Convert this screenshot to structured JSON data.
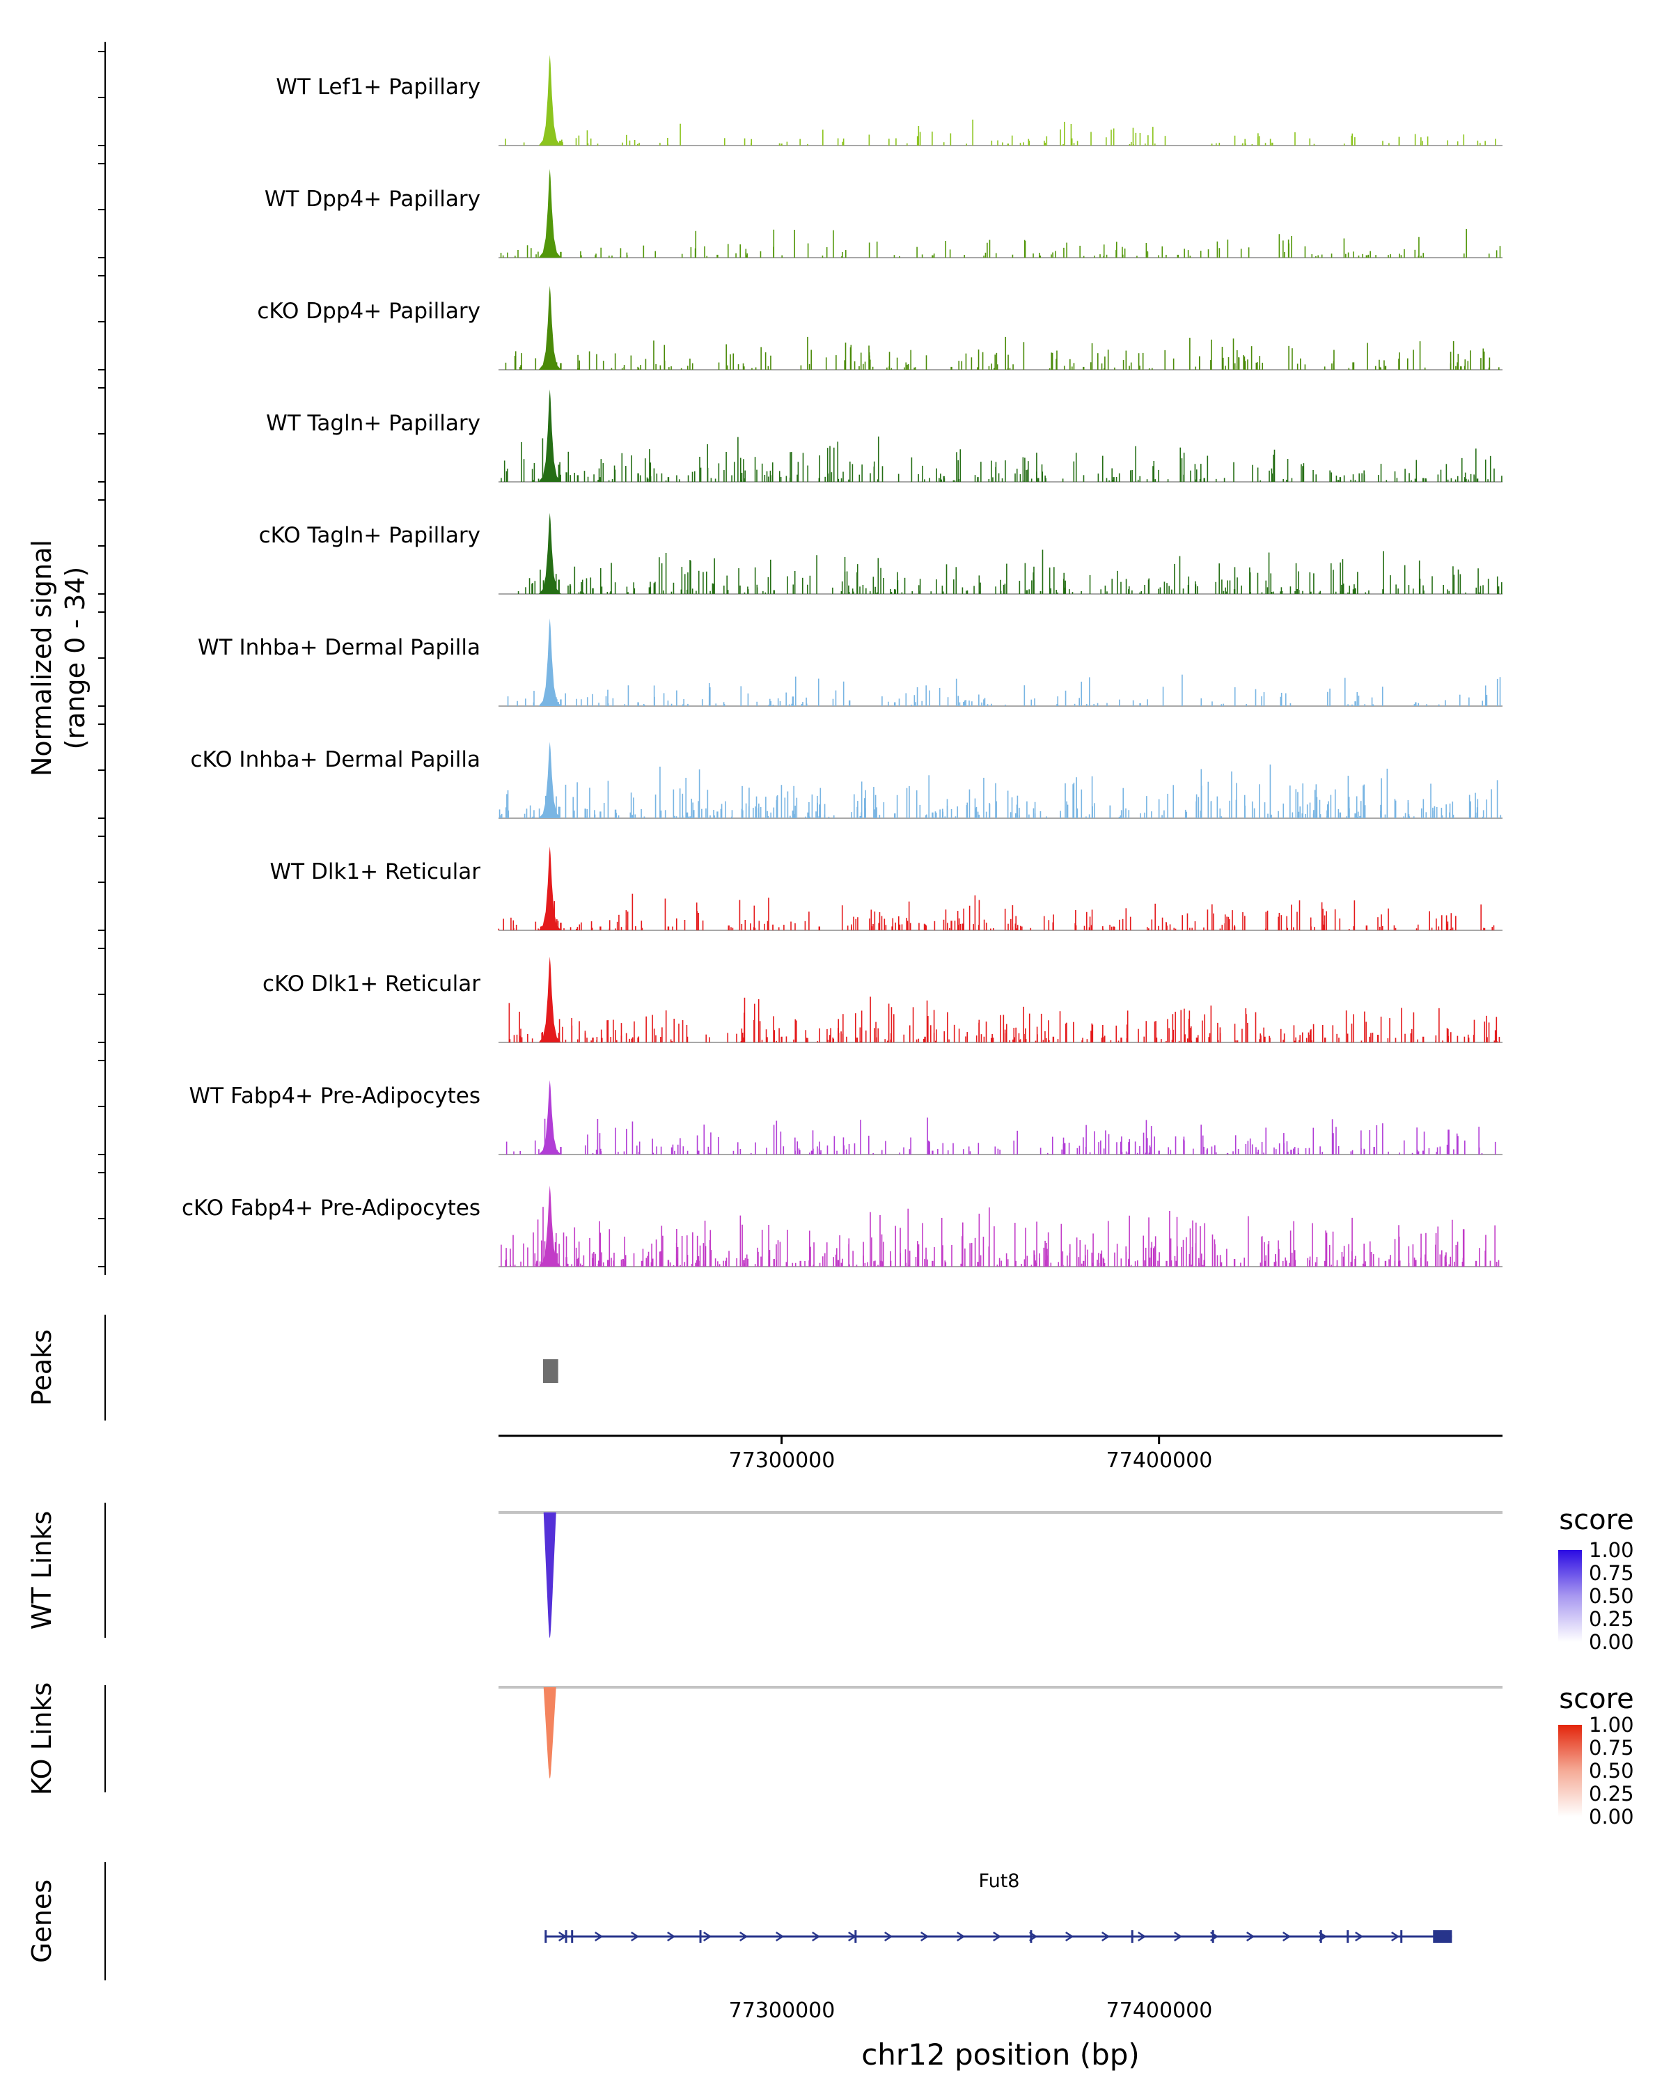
{
  "chart_data": {
    "type": "area",
    "title": "",
    "region": {
      "chrom": "chr12",
      "start": 77225000,
      "end": 77491000
    },
    "peak_summit": 77238600,
    "signal": {
      "axis_title": "Normalized signal\n(range 0 - 34)",
      "y_range": [
        0,
        34
      ],
      "tracks": [
        {
          "label": "WT Lef1+ Papillary",
          "color": "#8CC41E",
          "peak_frac": 0.95,
          "noise_n": 120,
          "noise_h": 0.035,
          "seed": 11,
          "extras": [
            [
              77241500,
              0.05
            ],
            [
              77300000,
              0.02
            ],
            [
              77360000,
              0.02
            ],
            [
              77430000,
              0.03
            ]
          ]
        },
        {
          "label": "WT Dpp4+ Papillary",
          "color": "#52970A",
          "peak_frac": 0.93,
          "noise_n": 140,
          "noise_h": 0.04,
          "seed": 22,
          "extras": [
            [
              77241500,
              0.06
            ],
            [
              77283000,
              0.03
            ],
            [
              77340000,
              0.025
            ],
            [
              77405000,
              0.03
            ],
            [
              77455000,
              0.025
            ]
          ]
        },
        {
          "label": "cKO Dpp4+ Papillary",
          "color": "#4A8A08",
          "peak_frac": 0.88,
          "noise_n": 200,
          "noise_h": 0.045,
          "seed": 33,
          "extras": [
            [
              77241500,
              0.07
            ],
            [
              77290000,
              0.035
            ],
            [
              77345000,
              0.03
            ],
            [
              77380000,
              0.03
            ],
            [
              77460000,
              0.04
            ],
            [
              77480000,
              0.035
            ]
          ]
        },
        {
          "label": "WT Tagln+ Papillary",
          "color": "#256E15",
          "peak_frac": 0.97,
          "noise_n": 260,
          "noise_h": 0.06,
          "seed": 44,
          "extras": [
            [
              77241000,
              0.18
            ],
            [
              77243000,
              0.1
            ],
            [
              77246000,
              0.07
            ],
            [
              77252000,
              0.05
            ],
            [
              77262000,
              0.09
            ],
            [
              77270000,
              0.05
            ],
            [
              77310000,
              0.04
            ],
            [
              77343000,
              0.06
            ],
            [
              77352000,
              0.05
            ],
            [
              77368000,
              0.04
            ],
            [
              77388000,
              0.05
            ],
            [
              77412000,
              0.04
            ],
            [
              77448000,
              0.05
            ],
            [
              77470000,
              0.04
            ]
          ]
        },
        {
          "label": "cKO Tagln+ Papillary",
          "color": "#256E15",
          "peak_frac": 0.85,
          "noise_n": 280,
          "noise_h": 0.06,
          "seed": 55,
          "extras": [
            [
              77241000,
              0.15
            ],
            [
              77244000,
              0.09
            ],
            [
              77250000,
              0.06
            ],
            [
              77265000,
              0.07
            ],
            [
              77298000,
              0.04
            ],
            [
              77330000,
              0.05
            ],
            [
              77365000,
              0.04
            ],
            [
              77392000,
              0.05
            ],
            [
              77420000,
              0.05
            ],
            [
              77452000,
              0.06
            ],
            [
              77478000,
              0.04
            ]
          ]
        },
        {
          "label": "WT Inhba+ Dermal Papilla",
          "color": "#79B5E3",
          "peak_frac": 0.92,
          "noise_n": 150,
          "noise_h": 0.045,
          "seed": 66,
          "extras": [
            [
              77241500,
              0.07
            ],
            [
              77262000,
              0.04
            ],
            [
              77303000,
              0.1
            ],
            [
              77318000,
              0.06
            ],
            [
              77330000,
              0.04
            ],
            [
              77395000,
              0.03
            ],
            [
              77452000,
              0.05
            ],
            [
              77468000,
              0.04
            ]
          ]
        },
        {
          "label": "cKO Inhba+ Dermal Papilla",
          "color": "#79B5E3",
          "peak_frac": 0.8,
          "noise_n": 320,
          "noise_h": 0.07,
          "seed": 77,
          "extras": [
            [
              77241000,
              0.12
            ],
            [
              77245000,
              0.08
            ],
            [
              77248000,
              0.1
            ],
            [
              77252000,
              0.07
            ],
            [
              77256000,
              0.09
            ],
            [
              77260000,
              0.06
            ],
            [
              77268000,
              0.08
            ],
            [
              77275000,
              0.06
            ],
            [
              77283000,
              0.07
            ],
            [
              77303000,
              0.08
            ],
            [
              77307000,
              0.06
            ],
            [
              77330000,
              0.05
            ],
            [
              77340000,
              0.06
            ],
            [
              77438000,
              0.05
            ],
            [
              77448000,
              0.06
            ],
            [
              77452000,
              0.05
            ]
          ]
        },
        {
          "label": "WT Dlk1+ Reticular",
          "color": "#E41A1C",
          "peak_frac": 0.88,
          "noise_n": 240,
          "noise_h": 0.05,
          "seed": 88,
          "extras": [
            [
              77241500,
              0.08
            ],
            [
              77252000,
              0.04
            ],
            [
              77270000,
              0.04
            ],
            [
              77286000,
              0.05
            ],
            [
              77310000,
              0.04
            ],
            [
              77345000,
              0.1
            ],
            [
              77348000,
              0.07
            ],
            [
              77388000,
              0.04
            ],
            [
              77420000,
              0.04
            ],
            [
              77455000,
              0.05
            ]
          ]
        },
        {
          "label": "cKO Dlk1+ Reticular",
          "color": "#E41A1C",
          "peak_frac": 0.9,
          "noise_n": 320,
          "noise_h": 0.06,
          "seed": 99,
          "extras": [
            [
              77241000,
              0.1
            ],
            [
              77250000,
              0.05
            ],
            [
              77262000,
              0.05
            ],
            [
              77275000,
              0.06
            ],
            [
              77290000,
              0.05
            ],
            [
              77300000,
              0.06
            ],
            [
              77320000,
              0.05
            ],
            [
              77338000,
              0.06
            ],
            [
              77356000,
              0.05
            ],
            [
              77372000,
              0.06
            ],
            [
              77390000,
              0.05
            ],
            [
              77410000,
              0.05
            ],
            [
              77428000,
              0.06
            ],
            [
              77444000,
              0.05
            ],
            [
              77458000,
              0.08
            ],
            [
              77470000,
              0.06
            ],
            [
              77482000,
              0.05
            ]
          ]
        },
        {
          "label": "WT Fabp4+ Pre-Adipocytes",
          "color": "#B13DD6",
          "peak_frac": 0.78,
          "noise_n": 220,
          "noise_h": 0.05,
          "seed": 110,
          "extras": [
            [
              77241500,
              0.08
            ],
            [
              77252000,
              0.06
            ],
            [
              77278000,
              0.04
            ],
            [
              77308000,
              0.04
            ],
            [
              77340000,
              0.04
            ],
            [
              77375000,
              0.12
            ],
            [
              77400000,
              0.04
            ],
            [
              77435000,
              0.05
            ],
            [
              77457000,
              0.08
            ],
            [
              77470000,
              0.04
            ]
          ]
        },
        {
          "label": "cKO Fabp4+ Pre-Adipocytes",
          "color": "#C23BC7",
          "peak_frac": 0.85,
          "noise_n": 420,
          "noise_h": 0.08,
          "seed": 121,
          "extras": [
            [
              77240500,
              0.14
            ],
            [
              77243000,
              0.1
            ],
            [
              77246000,
              0.08
            ],
            [
              77250000,
              0.09
            ],
            [
              77254000,
              0.07
            ],
            [
              77258000,
              0.08
            ],
            [
              77263000,
              0.06
            ],
            [
              77270000,
              0.07
            ],
            [
              77278000,
              0.06
            ],
            [
              77290000,
              0.07
            ],
            [
              77298000,
              0.08
            ],
            [
              77305000,
              0.06
            ],
            [
              77315000,
              0.07
            ],
            [
              77340000,
              0.06
            ],
            [
              77352000,
              0.05
            ],
            [
              77362000,
              0.06
            ],
            [
              77370000,
              0.07
            ],
            [
              77380000,
              0.06
            ],
            [
              77392000,
              0.07
            ],
            [
              77402000,
              0.06
            ],
            [
              77412000,
              0.07
            ],
            [
              77420000,
              0.08
            ],
            [
              77428000,
              0.06
            ],
            [
              77436000,
              0.07
            ],
            [
              77444000,
              0.06
            ],
            [
              77452000,
              0.08
            ],
            [
              77460000,
              0.06
            ],
            [
              77468000,
              0.07
            ],
            [
              77476000,
              0.05
            ],
            [
              77484000,
              0.06
            ]
          ]
        }
      ]
    },
    "peaks": {
      "label": "Peaks",
      "color": "#6E6E6E",
      "intervals": [
        [
          77236800,
          77240800
        ]
      ]
    },
    "axis": {
      "ticks": [
        {
          "pos": 77300000,
          "label": "77300000"
        },
        {
          "pos": 77400000,
          "label": "77400000"
        }
      ],
      "xlabel": "chr12 position (bp)"
    },
    "links": [
      {
        "label": "WT Links",
        "legend_title": "score",
        "legend_ticks": [
          "1.00",
          "0.75",
          "0.50",
          "0.25",
          "0.00"
        ],
        "gradient": [
          "#2B0BE3",
          "#A898F0",
          "#FFFFFF"
        ],
        "line_color": "#C3C3C3",
        "links": [
          {
            "pos": 77238600,
            "score": 0.9,
            "depth": 1.0,
            "color": "#5430D8"
          }
        ]
      },
      {
        "label": "KO Links",
        "legend_title": "score",
        "legend_ticks": [
          "1.00",
          "0.75",
          "0.50",
          "0.25",
          "0.00"
        ],
        "gradient": [
          "#E3250B",
          "#F5AB97",
          "#FFFFFF"
        ],
        "line_color": "#C3C3C3",
        "links": [
          {
            "pos": 77238600,
            "score": 0.5,
            "depth": 1.0,
            "color": "#F4845E"
          }
        ]
      }
    ],
    "genes": {
      "label": "Genes",
      "name": "Fut8",
      "strand": "+",
      "color": "#27348B",
      "start": 77237500,
      "end": 77477600,
      "exon_ticks": [
        77237500,
        77242900,
        77244500,
        77278500,
        77319600,
        77366100,
        77392900,
        77414300,
        77442900,
        77450000,
        77464200
      ],
      "terminal_exon": [
        77472600,
        77477600
      ]
    }
  }
}
